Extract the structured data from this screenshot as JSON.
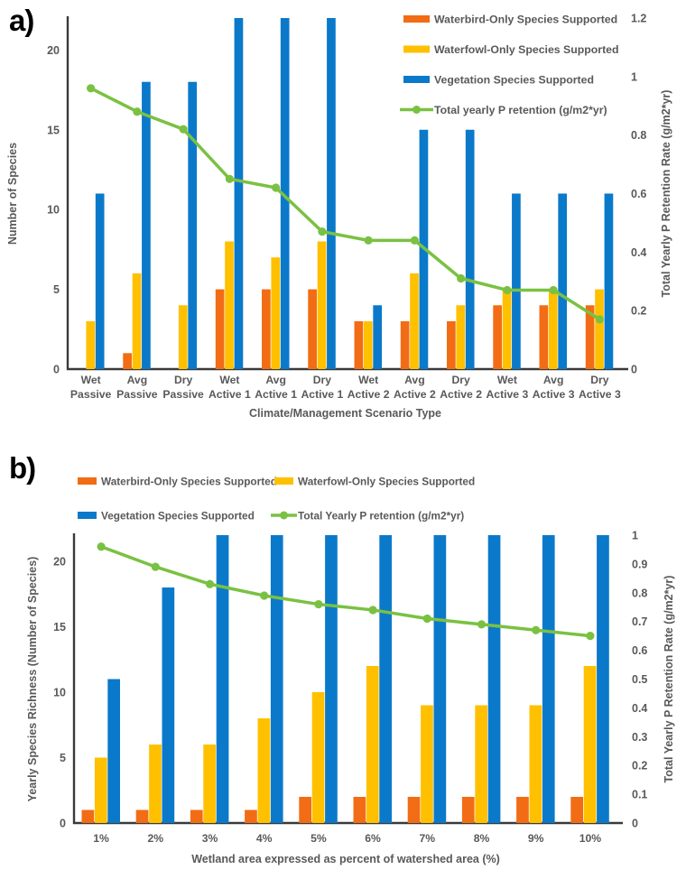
{
  "colors": {
    "waterbird": "#F26C15",
    "waterfowl": "#FFC000",
    "vegetation": "#0B79CA",
    "retention_line": "#7AC142",
    "axis_text": "#595959",
    "axis_line": "#3a3a3a"
  },
  "chart_data": [
    {
      "panel_label": "a)",
      "type": "combo-bar-line",
      "categories": [
        [
          "Wet",
          "Passive"
        ],
        [
          "Avg",
          "Passive"
        ],
        [
          "Dry",
          "Passive"
        ],
        [
          "Wet",
          "Active 1"
        ],
        [
          "Avg",
          "Active 1"
        ],
        [
          "Dry",
          "Active 1"
        ],
        [
          "Wet",
          "Active 2"
        ],
        [
          "Avg",
          "Active 2"
        ],
        [
          "Dry",
          "Active 2"
        ],
        [
          "Wet",
          "Active 3"
        ],
        [
          "Avg",
          "Active 3"
        ],
        [
          "Dry",
          "Active 3"
        ]
      ],
      "bar_series": [
        {
          "name": "Waterbird-Only Species Supported",
          "color": "#F26C15",
          "values": [
            0,
            1,
            0,
            5,
            5,
            5,
            3,
            3,
            3,
            4,
            4,
            4
          ]
        },
        {
          "name": "Waterfowl-Only Species Supported",
          "color": "#FFC000",
          "values": [
            3,
            6,
            4,
            8,
            7,
            8,
            3,
            6,
            4,
            5,
            5,
            5
          ]
        },
        {
          "name": "Vegetation Species Supported",
          "color": "#0B79CA",
          "values": [
            11,
            18,
            18,
            22,
            22,
            22,
            4,
            15,
            15,
            11,
            11,
            11
          ]
        }
      ],
      "bars_clipped_at_axis_max": true,
      "line_series": {
        "name": "Total yearly P retention (g/m2*yr)",
        "color": "#7AC142",
        "values": [
          0.96,
          0.88,
          0.82,
          0.65,
          0.62,
          0.47,
          0.44,
          0.44,
          0.31,
          0.27,
          0.27,
          0.17
        ]
      },
      "left_axis": {
        "label": "Number of Species",
        "min": 0,
        "max": 22,
        "ticks": [
          "0",
          "5",
          "10",
          "15",
          "20"
        ]
      },
      "right_axis": {
        "label": "Total Yearly P Retention Rate (g/m2*yr)",
        "min": 0,
        "max": 1.2,
        "ticks": [
          "0",
          "0.2",
          "0.4",
          "0.6",
          "0.8",
          "1",
          "1.2"
        ]
      },
      "x_label": "Climate/Management Scenario Type",
      "legend": {
        "position": "right-stack"
      },
      "grid": "off"
    },
    {
      "panel_label": "b)",
      "type": "combo-bar-line",
      "categories": [
        [
          "1%"
        ],
        [
          "2%"
        ],
        [
          "3%"
        ],
        [
          "4%"
        ],
        [
          "5%"
        ],
        [
          "6%"
        ],
        [
          "7%"
        ],
        [
          "8%"
        ],
        [
          "9%"
        ],
        [
          "10%"
        ]
      ],
      "bar_series": [
        {
          "name": "Waterbird-Only Species Supported",
          "color": "#F26C15",
          "values": [
            1,
            1,
            1,
            1,
            2,
            2,
            2,
            2,
            2,
            2
          ]
        },
        {
          "name": "Waterfowl-Only Species Supported",
          "color": "#FFC000",
          "values": [
            5,
            6,
            6,
            8,
            10,
            12,
            9,
            9,
            9,
            12
          ]
        },
        {
          "name": "Vegetation Species Supported",
          "color": "#0B79CA",
          "values": [
            11,
            18,
            22,
            22,
            22,
            22,
            22,
            22,
            22,
            22
          ]
        }
      ],
      "bars_clipped_at_axis_max": true,
      "line_series": {
        "name": "Total Yearly P retention (g/m2*yr)",
        "color": "#7AC142",
        "values": [
          0.96,
          0.89,
          0.83,
          0.79,
          0.76,
          0.74,
          0.71,
          0.69,
          0.67,
          0.65
        ]
      },
      "left_axis": {
        "label": "Yearly Species Richness (Number of Species)",
        "min": 0,
        "max": 22,
        "ticks": [
          "0",
          "5",
          "10",
          "15",
          "20"
        ]
      },
      "right_axis": {
        "label": "Total Yearly P Retention Rate (g/m2*yr)",
        "min": 0,
        "max": 1,
        "ticks": [
          "0",
          "0.1",
          "0.2",
          "0.3",
          "0.4",
          "0.5",
          "0.6",
          "0.7",
          "0.8",
          "0.9",
          "1"
        ]
      },
      "x_label": "Wetland area expressed as percent of watershed area (%)",
      "legend": {
        "position": "top-grid"
      },
      "grid": "off"
    }
  ]
}
